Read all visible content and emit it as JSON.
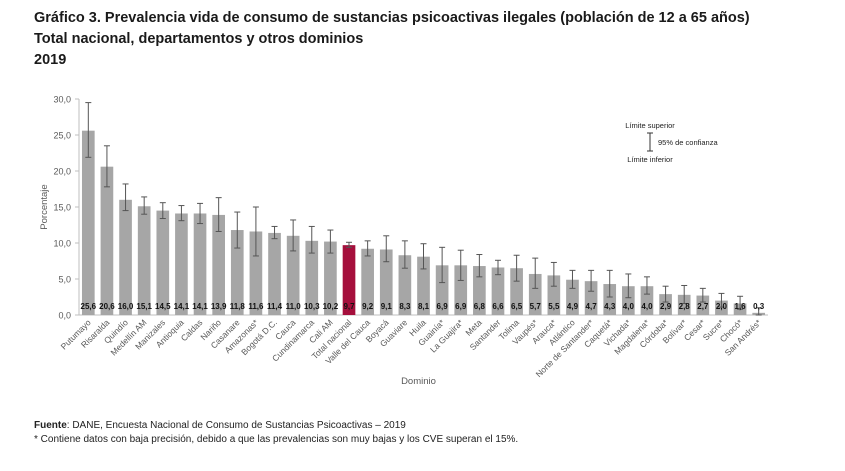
{
  "header": {
    "title_line1": "Gráfico 3. Prevalencia vida de consumo de sustancias psicoactivas ilegales (población de 12 a 65 años)",
    "title_line2": "Total nacional, departamentos y otros dominios",
    "title_line3": "2019"
  },
  "footer": {
    "source_label": "Fuente",
    "source_text": ": DANE, Encuesta Nacional de Consumo de Sustancias Psicoactivas – 2019",
    "note": "* Contiene datos con baja precisión, debido a que las prevalencias son muy bajas y los CVE superan el 15%."
  },
  "colors": {
    "bar": "#a6a6a6",
    "highlight": "#a50f3c",
    "error": "#555555",
    "axis": "#bfbfbf"
  },
  "chart_data": {
    "type": "bar",
    "title": "",
    "xlabel": "Dominio",
    "ylabel": "Porcentaje",
    "ylim": [
      0,
      30
    ],
    "yticks": [
      "0,0",
      "5,0",
      "10,0",
      "15,0",
      "20,0",
      "25,0",
      "30,0"
    ],
    "grid": false,
    "legend": {
      "upper": "Límite superior",
      "ci": "95% de confianza",
      "lower": "Límite inferior",
      "placement": "top-right"
    },
    "highlight_category": "Total nacional",
    "categories": [
      "Putumayo",
      "Risaralda",
      "Quindío",
      "Medellín AM",
      "Manizales",
      "Antioquia",
      "Caldas",
      "Nariño",
      "Casanare",
      "Amazonas*",
      "Bogotá D.C.",
      "Cauca",
      "Cundinamarca",
      "Cali AM",
      "Total nacional",
      "Valle del Cauca",
      "Boyacá",
      "Guaviare",
      "Huila",
      "Guainía*",
      "La Guajira*",
      "Meta",
      "Santander",
      "Tolima",
      "Vaupés*",
      "Arauca*",
      "Atlántico",
      "Norte de Santander*",
      "Caquetá*",
      "Vichada*",
      "Magdalena*",
      "Córdoba*",
      "Bolívar*",
      "Cesar*",
      "Sucre*",
      "Chocó*",
      "San Andrés*"
    ],
    "values": [
      25.6,
      20.6,
      16.0,
      15.1,
      14.5,
      14.1,
      14.1,
      13.9,
      11.8,
      11.6,
      11.4,
      11.0,
      10.3,
      10.2,
      9.7,
      9.2,
      9.1,
      8.3,
      8.1,
      6.9,
      6.9,
      6.8,
      6.6,
      6.5,
      5.7,
      5.5,
      4.9,
      4.7,
      4.3,
      4.0,
      4.0,
      2.9,
      2.8,
      2.7,
      2.0,
      1.6,
      0.3
    ],
    "value_labels": [
      "25,6",
      "20,6",
      "16,0",
      "15,1",
      "14,5",
      "14,1",
      "14,1",
      "13,9",
      "11,8",
      "11,6",
      "11,4",
      "11,0",
      "10,3",
      "10,2",
      "9,7",
      "9,2",
      "9,1",
      "8,3",
      "8,1",
      "6,9",
      "6,9",
      "6,8",
      "6,6",
      "6,5",
      "5,7",
      "5,5",
      "4,9",
      "4,7",
      "4,3",
      "4,0",
      "4,0",
      "2,9",
      "2,8",
      "2,7",
      "2,0",
      "1,6",
      "0,3"
    ],
    "lower": [
      21.9,
      17.8,
      14.5,
      14.0,
      13.4,
      13.1,
      12.7,
      11.6,
      9.3,
      8.2,
      10.6,
      8.9,
      8.6,
      8.6,
      9.4,
      8.2,
      7.4,
      6.5,
      6.4,
      4.5,
      4.8,
      5.3,
      5.6,
      4.7,
      3.7,
      4.0,
      3.7,
      3.3,
      2.5,
      2.4,
      2.9,
      1.8,
      1.6,
      1.8,
      1.1,
      0.8,
      0.0
    ],
    "upper": [
      29.5,
      23.5,
      18.2,
      16.4,
      15.6,
      15.2,
      15.5,
      16.3,
      14.3,
      15.0,
      12.3,
      13.2,
      12.3,
      11.8,
      10.1,
      10.3,
      11.0,
      10.3,
      9.9,
      9.4,
      9.0,
      8.4,
      7.6,
      8.3,
      7.9,
      7.3,
      6.2,
      6.2,
      6.2,
      5.7,
      5.3,
      4.0,
      4.1,
      3.7,
      3.0,
      2.6,
      1.0
    ]
  }
}
